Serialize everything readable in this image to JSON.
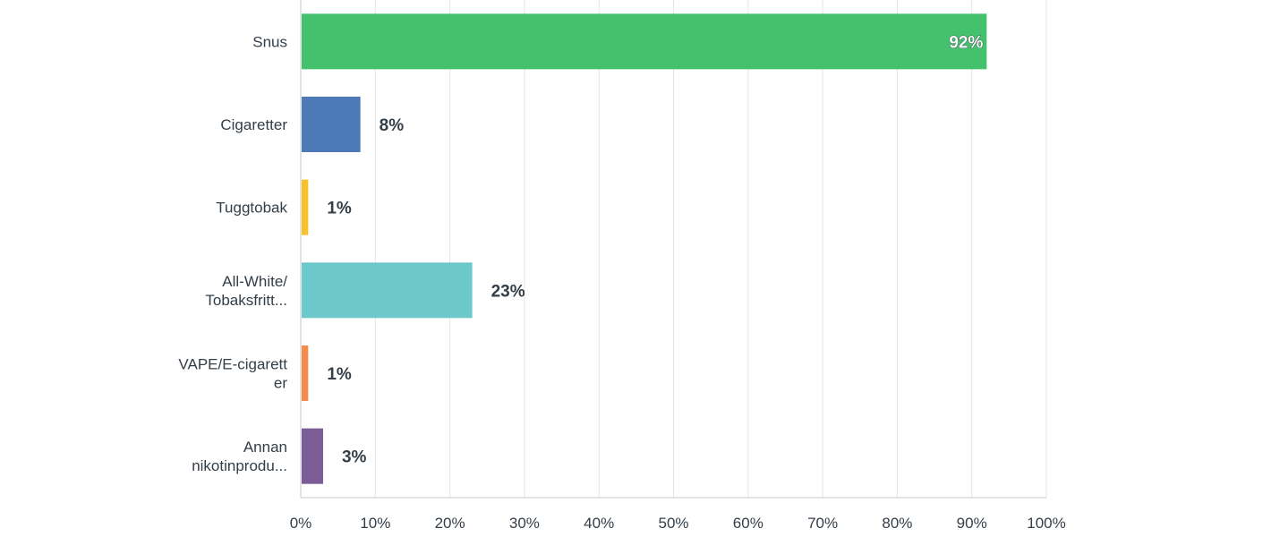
{
  "chart_data": {
    "type": "bar",
    "orientation": "horizontal",
    "categories": [
      [
        "Snus"
      ],
      [
        "Cigaretter"
      ],
      [
        "Tuggtobak"
      ],
      [
        "All-White/",
        "Tobaksfritt..."
      ],
      [
        "VAPE/E-cigarett",
        "er"
      ],
      [
        "Annan",
        "nikotinprodu..."
      ]
    ],
    "values": [
      92,
      8,
      1,
      23,
      1,
      3
    ],
    "value_labels": [
      "92%",
      "8%",
      "1%",
      "23%",
      "1%",
      "3%"
    ],
    "colors": [
      "#43c16d",
      "#4d79b8",
      "#f6c12a",
      "#6dc8cc",
      "#f58c4c",
      "#7b5c97"
    ],
    "xlim": [
      0,
      100
    ],
    "ticks": [
      0,
      10,
      20,
      30,
      40,
      50,
      60,
      70,
      80,
      90,
      100
    ],
    "tick_labels": [
      "0%",
      "10%",
      "20%",
      "30%",
      "40%",
      "50%",
      "60%",
      "70%",
      "80%",
      "90%",
      "100%"
    ],
    "grid": true,
    "legend": "none"
  }
}
